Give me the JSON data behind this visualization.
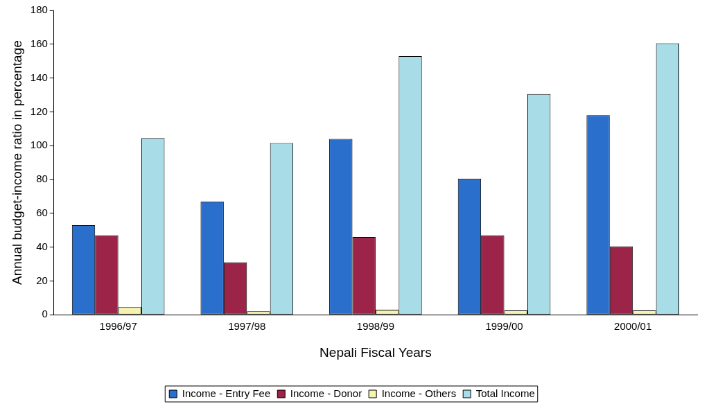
{
  "chart_data": {
    "type": "bar",
    "xlabel": "Nepali Fiscal Years",
    "ylabel": "Annual budget-income ratio in percentage",
    "categories": [
      "1996/97",
      "1997/98",
      "1998/99",
      "1999/00",
      "2000/01"
    ],
    "series": [
      {
        "name": "Income - Entry Fee",
        "color": "#2a6fcc",
        "values": [
          53,
          67,
          104,
          80.5,
          118
        ]
      },
      {
        "name": "Income - Donor",
        "color": "#9b2448",
        "values": [
          47,
          31,
          46,
          47,
          40.5
        ]
      },
      {
        "name": "Income - Others",
        "color": "#f6f3b0",
        "values": [
          4.5,
          2,
          3,
          2.5,
          2.5
        ]
      },
      {
        "name": "Total Income",
        "color": "#a8dde8",
        "values": [
          104.5,
          101.5,
          153,
          130.5,
          160.5
        ]
      }
    ],
    "ylim": [
      0,
      180
    ],
    "yticks": [
      0,
      20,
      40,
      60,
      80,
      100,
      120,
      140,
      160,
      180
    ],
    "grid": false,
    "legend": "bottom"
  }
}
